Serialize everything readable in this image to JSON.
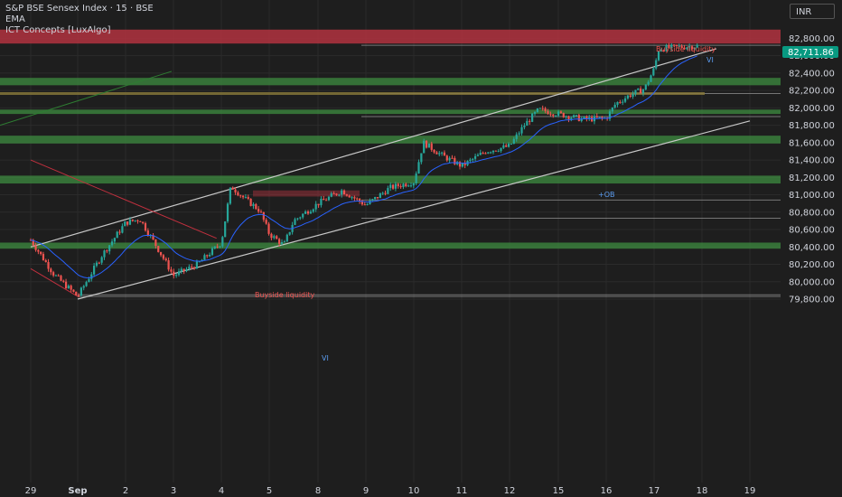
{
  "header": {
    "symbol": "S&P BSE Sensex Index · 15 · BSE",
    "indicator_1": "EMA",
    "indicator_2": "ICT Concepts [LuxAlgo]",
    "currency": "INR"
  },
  "colors": {
    "background": "#1e1e1e",
    "up": "#26a69a",
    "down": "#ef5350",
    "ema": "#2962ff",
    "bull_zone": "#3d8c40",
    "bear_zone": "#b2323f",
    "channel": "#c8c8c8",
    "last_price_bg": "#089981"
  },
  "chart_data": {
    "type": "candlestick",
    "title": "S&P BSE Sensex Index · 15 · BSE",
    "ylim": [
      79700,
      82920
    ],
    "y_ticks": [
      "82,800.00",
      "82,600.00",
      "82,400.00",
      "82,200.00",
      "82,000.00",
      "81,800.00",
      "81,600.00",
      "81,400.00",
      "81,200.00",
      "81,000.00",
      "80,800.00",
      "80,600.00",
      "80,400.00",
      "80,200.00",
      "80,000.00",
      "79,800.00"
    ],
    "x_labels": [
      "29",
      "Sep",
      "2",
      "3",
      "4",
      "5",
      "8",
      "9",
      "10",
      "11",
      "12",
      "15",
      "16",
      "17",
      "18",
      "19"
    ],
    "last_price": 82711.86,
    "last_price_label": "82,711.86",
    "annotations": {
      "vi_1": "VI",
      "vi_2": "VI",
      "ob_label": "+OB",
      "buyside_label": "Buyside liquidity",
      "sellside_label": "Buyside liquidity"
    },
    "price_path": [
      {
        "d": 0.0,
        "p": 80480
      },
      {
        "d": 0.5,
        "p": 80080
      },
      {
        "d": 1.0,
        "p": 79830
      },
      {
        "d": 1.5,
        "p": 80300
      },
      {
        "d": 2.0,
        "p": 80680
      },
      {
        "d": 2.3,
        "p": 80720
      },
      {
        "d": 2.6,
        "p": 80450
      },
      {
        "d": 3.0,
        "p": 80070
      },
      {
        "d": 3.5,
        "p": 80200
      },
      {
        "d": 4.0,
        "p": 80450
      },
      {
        "d": 4.2,
        "p": 81100
      },
      {
        "d": 4.5,
        "p": 80950
      },
      {
        "d": 4.8,
        "p": 80820
      },
      {
        "d": 5.0,
        "p": 80550
      },
      {
        "d": 5.3,
        "p": 80420
      },
      {
        "d": 5.5,
        "p": 80700
      },
      {
        "d": 6.0,
        "p": 80900
      },
      {
        "d": 6.5,
        "p": 81050
      },
      {
        "d": 7.0,
        "p": 80880
      },
      {
        "d": 7.5,
        "p": 81080
      },
      {
        "d": 8.0,
        "p": 81150
      },
      {
        "d": 8.2,
        "p": 81600
      },
      {
        "d": 8.6,
        "p": 81450
      },
      {
        "d": 9.0,
        "p": 81330
      },
      {
        "d": 9.5,
        "p": 81500
      },
      {
        "d": 10.0,
        "p": 81560
      },
      {
        "d": 10.3,
        "p": 81800
      },
      {
        "d": 10.6,
        "p": 81980
      },
      {
        "d": 11.0,
        "p": 81930
      },
      {
        "d": 11.5,
        "p": 81870
      },
      {
        "d": 12.0,
        "p": 81880
      },
      {
        "d": 12.2,
        "p": 82050
      },
      {
        "d": 12.5,
        "p": 82150
      },
      {
        "d": 12.8,
        "p": 82220
      },
      {
        "d": 13.0,
        "p": 82450
      },
      {
        "d": 13.1,
        "p": 82680
      },
      {
        "d": 13.5,
        "p": 82700
      },
      {
        "d": 13.9,
        "p": 82711.86
      }
    ],
    "zones": [
      {
        "kind": "bear",
        "from": 82740,
        "to": 82900
      },
      {
        "kind": "bull",
        "from": 82260,
        "to": 82345
      },
      {
        "kind": "bull",
        "from": 81930,
        "to": 81980
      },
      {
        "kind": "bull",
        "from": 81590,
        "to": 81680
      },
      {
        "kind": "bull",
        "from": 81130,
        "to": 81220
      },
      {
        "kind": "bull",
        "from": 80380,
        "to": 80450
      }
    ],
    "levels": [
      82720,
      82165,
      81900,
      80940,
      80730,
      79850,
      79830
    ],
    "channels": [
      {
        "from": [
          0,
          80400
        ],
        "to": [
          14.3,
          82680
        ]
      },
      {
        "from": [
          1.0,
          79800
        ],
        "to": [
          15.0,
          81850
        ]
      }
    ],
    "downtrend": [
      {
        "from": [
          0,
          81400
        ],
        "to": [
          3.9,
          80500
        ]
      },
      {
        "from": [
          0,
          80150
        ],
        "to": [
          1.0,
          79830
        ]
      }
    ]
  }
}
